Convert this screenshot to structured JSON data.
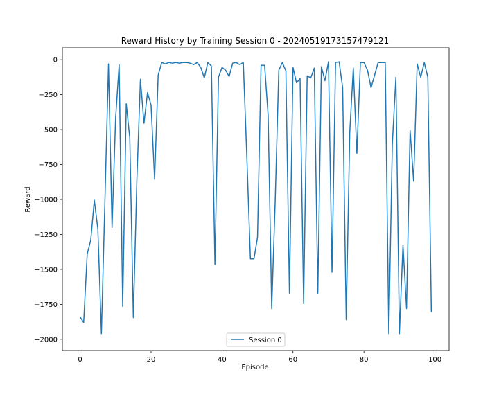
{
  "chart_data": {
    "type": "line",
    "title": "Reward History by Training Session 0 - 20240519173157479121",
    "xlabel": "Episode",
    "ylabel": "Reward",
    "xlim": [
      -5,
      104
    ],
    "ylim": [
      -2080,
      85
    ],
    "xticks": [
      0,
      20,
      40,
      60,
      80,
      100
    ],
    "yticks": [
      0,
      -250,
      -500,
      -750,
      -1000,
      -1250,
      -1500,
      -1750,
      -2000
    ],
    "grid": false,
    "legend_position": "bottom-center",
    "series_color": "#1f77b4",
    "series": [
      {
        "name": "Session 0",
        "x": [
          0,
          1,
          2,
          3,
          4,
          5,
          6,
          7,
          8,
          9,
          10,
          11,
          12,
          13,
          14,
          15,
          16,
          17,
          18,
          19,
          20,
          21,
          22,
          23,
          24,
          25,
          26,
          27,
          28,
          29,
          30,
          31,
          32,
          33,
          34,
          35,
          36,
          37,
          38,
          39,
          40,
          41,
          42,
          43,
          44,
          45,
          46,
          47,
          48,
          49,
          50,
          51,
          52,
          53,
          54,
          55,
          56,
          57,
          58,
          59,
          60,
          61,
          62,
          63,
          64,
          65,
          66,
          67,
          68,
          69,
          70,
          71,
          72,
          73,
          74,
          75,
          76,
          77,
          78,
          79,
          80,
          81,
          82,
          83,
          84,
          85,
          86,
          87,
          88,
          89,
          90,
          91,
          92,
          93,
          94,
          95,
          96,
          97,
          98,
          99
        ],
        "values": [
          -1840,
          -1880,
          -1390,
          -1290,
          -1005,
          -1210,
          -1960,
          -1000,
          -30,
          -1200,
          -420,
          -35,
          -1765,
          -315,
          -560,
          -1845,
          -860,
          -140,
          -455,
          -235,
          -325,
          -855,
          -110,
          -20,
          -30,
          -20,
          -25,
          -20,
          -25,
          -20,
          -20,
          -25,
          -35,
          -20,
          -55,
          -130,
          -20,
          -45,
          -1465,
          -125,
          -55,
          -75,
          -120,
          -25,
          -20,
          -35,
          -20,
          -700,
          -1425,
          -1425,
          -1270,
          -40,
          -40,
          -400,
          -1780,
          -1000,
          -75,
          -20,
          -80,
          -1670,
          -55,
          -165,
          -135,
          -1745,
          -115,
          -130,
          -60,
          -1670,
          -50,
          -150,
          -15,
          -1520,
          -20,
          -15,
          -200,
          -1860,
          -520,
          -60,
          -670,
          -20,
          -20,
          -75,
          -200,
          -110,
          -20,
          -20,
          -20,
          -1960,
          -600,
          -125,
          -1960,
          -1325,
          -1780,
          -505,
          -870,
          -30,
          -125,
          -20,
          -125,
          -1805
        ]
      }
    ]
  }
}
